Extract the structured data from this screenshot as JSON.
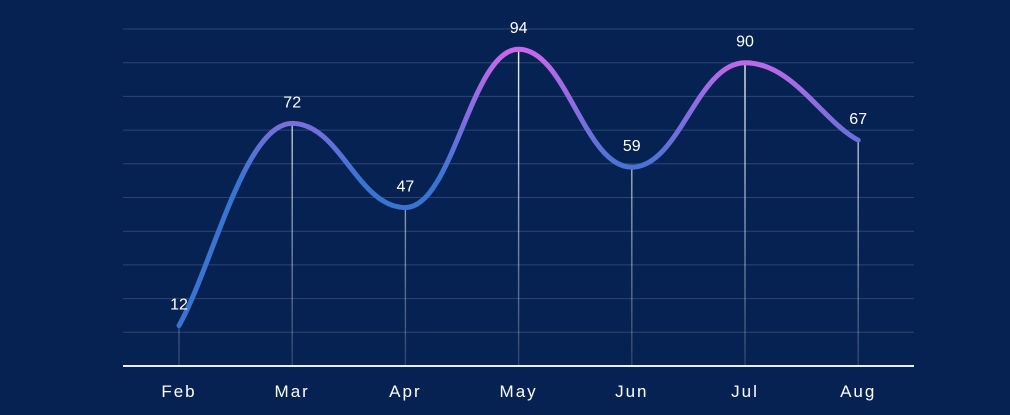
{
  "chart_data": {
    "type": "line",
    "categories": [
      "Feb",
      "Mar",
      "Apr",
      "May",
      "Jun",
      "Jul",
      "Aug"
    ],
    "values": [
      12,
      72,
      47,
      94,
      59,
      90,
      67
    ],
    "title": "",
    "xlabel": "",
    "ylabel": "",
    "ylim": [
      0,
      100
    ],
    "grid": true,
    "curve": "smooth",
    "colors": {
      "background": "#062252",
      "grid": "#2a4670",
      "axis": "#e9eef8",
      "line_low": "#3a74d1",
      "line_high": "#e066f0",
      "text": "#ffffff"
    }
  }
}
